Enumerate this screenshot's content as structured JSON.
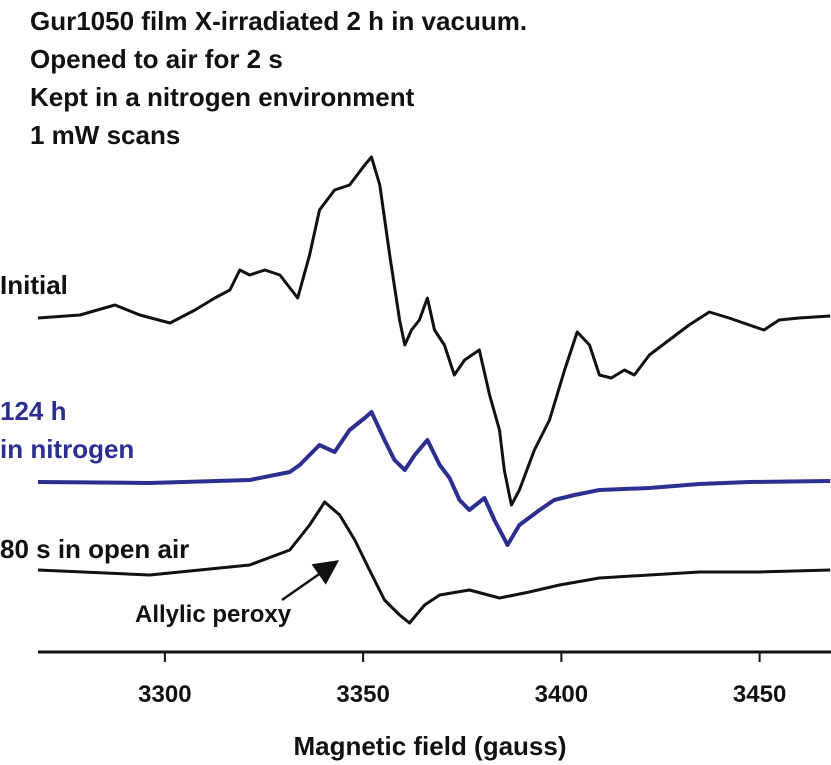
{
  "chart_data": {
    "type": "line",
    "title_lines": [
      "Gur1050 film X-irradiated 2 h in vacuum.",
      "Opened to air for 2 s",
      "Kept in a nitrogen environment",
      "1 mW scans"
    ],
    "xlabel": "Magnetic field (gauss)",
    "xlim": [
      3268,
      3468
    ],
    "xticks": [
      3300,
      3350,
      3400,
      3450
    ],
    "ylim": [
      0,
      55
    ],
    "annotation": "Allylic peroxy",
    "series": [
      {
        "name": "Initial",
        "color": "#111111",
        "x": [
          3268,
          3278.6,
          3287.4,
          3293.7,
          3301.3,
          3307.6,
          3312.6,
          3316.4,
          3318.9,
          3321.4,
          3325.2,
          3329.0,
          3333.5,
          3336.5,
          3339.0,
          3342.8,
          3346.6,
          3350.4,
          3352.1,
          3354.2,
          3356.7,
          3359.2,
          3360.5,
          3362.2,
          3364.2,
          3366.2,
          3368.0,
          3370.5,
          3373.0,
          3375.6,
          3379.3,
          3381.9,
          3384.4,
          3385.6,
          3387.4,
          3389.4,
          3393.2,
          3397.0,
          3400.8,
          3404.0,
          3407.1,
          3409.6,
          3412.6,
          3415.9,
          3418.4,
          3422.2,
          3427.2,
          3432.2,
          3437.3,
          3442.3,
          3447.4,
          3451.1,
          3454.9,
          3459.9,
          3467.8
        ],
        "values": [
          38.2,
          38.5,
          39.5,
          38.5,
          37.7,
          39.0,
          40.2,
          41.0,
          43.0,
          42.5,
          43.0,
          42.5,
          40.2,
          44.5,
          49.0,
          51.0,
          51.5,
          53.5,
          54.3,
          51.5,
          44.5,
          38.0,
          35.5,
          37.0,
          38.0,
          40.2,
          37.0,
          35.5,
          32.5,
          34.0,
          35.0,
          30.5,
          27.0,
          23.0,
          19.5,
          21.0,
          25.0,
          28.0,
          33.0,
          36.8,
          35.5,
          32.5,
          32.2,
          33.0,
          32.5,
          34.5,
          36.0,
          37.5,
          38.8,
          38.2,
          37.5,
          37.0,
          38.0,
          38.2,
          38.4
        ]
      },
      {
        "name": "124 h\nin nitrogen",
        "color": "#2b2f8f",
        "x": [
          3268,
          3296.2,
          3321.4,
          3331.5,
          3334.0,
          3339.0,
          3342.8,
          3346.6,
          3350.4,
          3352.1,
          3355.4,
          3357.9,
          3360.5,
          3363.0,
          3366.2,
          3369.3,
          3371.8,
          3374.3,
          3376.8,
          3380.6,
          3383.1,
          3386.4,
          3389.4,
          3394.5,
          3398.2,
          3403.3,
          3409.6,
          3422.2,
          3434.8,
          3447.4,
          3467.8
        ],
        "values": [
          21.8,
          21.7,
          22.0,
          22.8,
          23.5,
          25.5,
          24.8,
          27.0,
          28.2,
          28.8,
          26.0,
          24.0,
          23.0,
          24.5,
          26.0,
          23.5,
          22.2,
          20.0,
          19.0,
          20.2,
          18.0,
          15.5,
          17.5,
          19.0,
          20.0,
          20.5,
          21.0,
          21.2,
          21.6,
          21.8,
          21.9
        ]
      },
      {
        "name": "80 s in open air",
        "color": "#111111",
        "x": [
          3268,
          3296.2,
          3321.4,
          3331.5,
          3336.5,
          3340.3,
          3344.1,
          3347.9,
          3351.6,
          3355.4,
          3359.2,
          3361.7,
          3365.5,
          3369.3,
          3376.8,
          3384.4,
          3391.9,
          3399.5,
          3409.6,
          3422.2,
          3434.8,
          3449.9,
          3467.8
        ],
        "values": [
          13.0,
          12.5,
          13.5,
          15.0,
          17.5,
          19.8,
          18.5,
          16.0,
          13.0,
          10.0,
          8.5,
          7.7,
          9.5,
          10.5,
          11.0,
          10.2,
          10.8,
          11.5,
          12.2,
          12.5,
          12.8,
          12.8,
          13.0
        ]
      }
    ]
  }
}
